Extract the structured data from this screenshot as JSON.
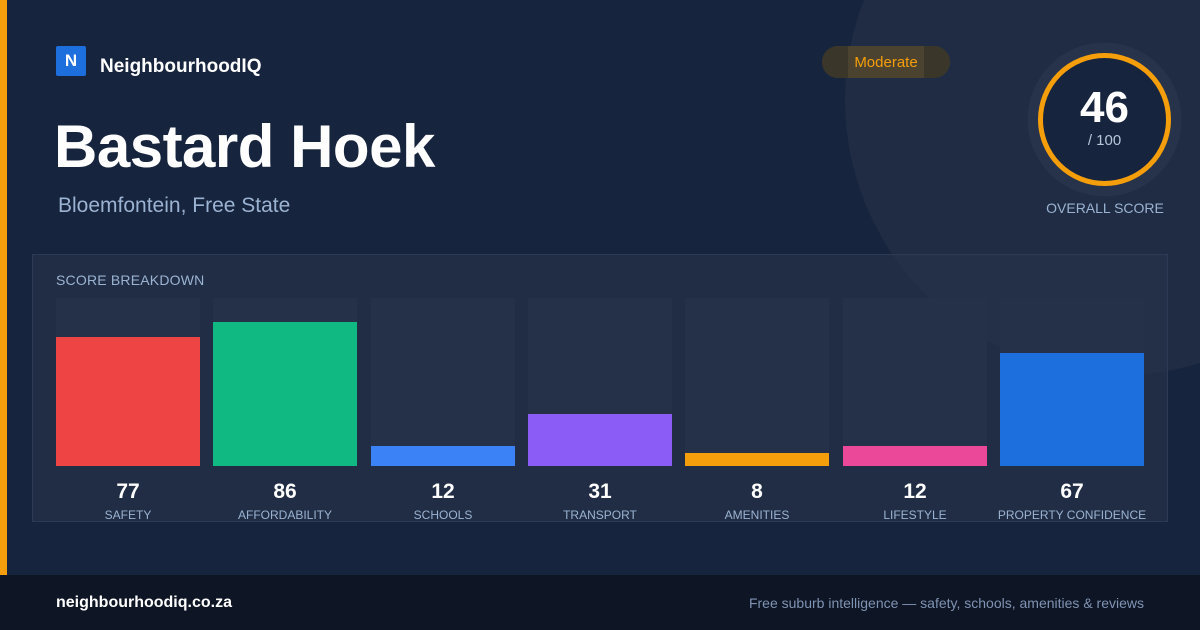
{
  "brand": {
    "logo_letter": "N",
    "name": "NeighbourhoodIQ"
  },
  "suburb": {
    "name": "Bastard Hoek",
    "location": "Bloemfontein, Free State"
  },
  "rating": {
    "label": "Moderate",
    "color": "#f59e0b"
  },
  "overall": {
    "score": "46",
    "max": "/ 100",
    "caption": "OVERALL SCORE",
    "fraction": 0.46,
    "ring_color": "#f59e0b"
  },
  "breakdown": {
    "heading": "SCORE BREAKDOWN",
    "items": [
      {
        "label": "SAFETY",
        "value": "77",
        "fraction": 0.77,
        "color": "#ef4444"
      },
      {
        "label": "AFFORDABILITY",
        "value": "86",
        "fraction": 0.86,
        "color": "#10b981"
      },
      {
        "label": "SCHOOLS",
        "value": "12",
        "fraction": 0.12,
        "color": "#3b82f6"
      },
      {
        "label": "TRANSPORT",
        "value": "31",
        "fraction": 0.31,
        "color": "#8b5cf6"
      },
      {
        "label": "AMENITIES",
        "value": "8",
        "fraction": 0.08,
        "color": "#f59e0b"
      },
      {
        "label": "LIFESTYLE",
        "value": "12",
        "fraction": 0.12,
        "color": "#ec4899"
      },
      {
        "label": "PROPERTY CONFIDENCE",
        "value": "67",
        "fraction": 0.67,
        "color": "#1d6fde"
      }
    ]
  },
  "footer": {
    "domain": "neighbourhoodiq.co.za",
    "tagline": "Free suburb intelligence — safety, schools, amenities & reviews"
  }
}
